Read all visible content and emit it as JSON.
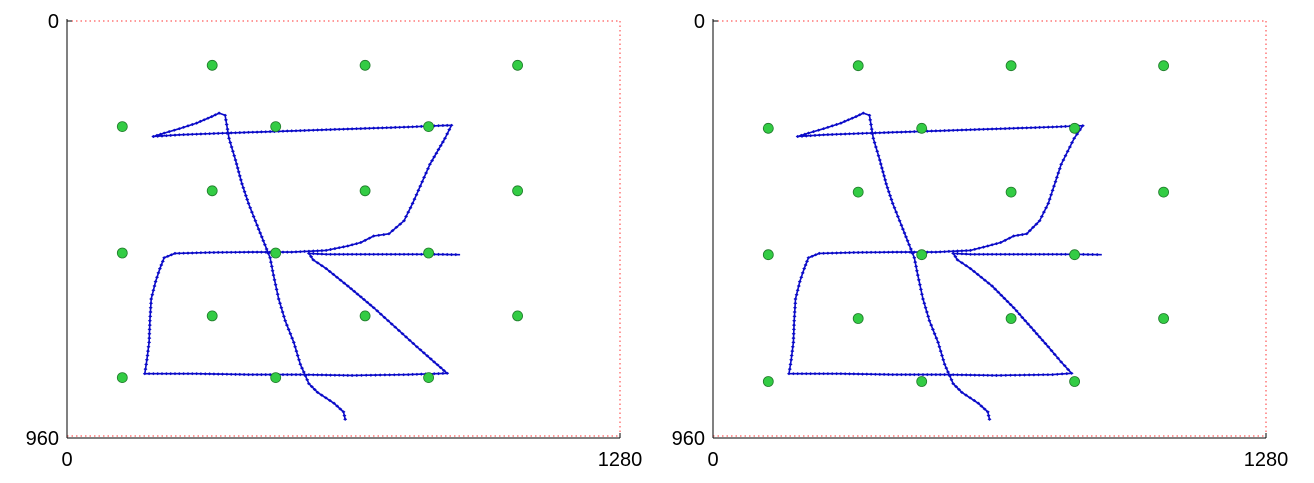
{
  "chart_data": [
    {
      "type": "scatter",
      "x_ticks": [
        "0",
        "1280"
      ],
      "y_ticks": [
        "0",
        "960"
      ],
      "xlim": [
        0,
        1280
      ],
      "ylim": [
        960,
        0
      ],
      "y_reversed": true,
      "grid": false,
      "colors": {
        "targets": "#33cc44",
        "gaze": "#0b0bc8",
        "boundary": "#ff3333"
      },
      "series": [
        {
          "points": [
            [
              128,
              243
            ],
            [
              336,
              102
            ],
            [
              690,
              102
            ],
            [
              1043,
              102
            ],
            [
              483,
              243
            ],
            [
              837,
              243
            ],
            [
              336,
              391
            ],
            [
              690,
              391
            ],
            [
              1043,
              391
            ],
            [
              128,
              534
            ],
            [
              483,
              534
            ],
            [
              837,
              534
            ],
            [
              336,
              679
            ],
            [
              690,
              679
            ],
            [
              1043,
              679
            ],
            [
              128,
              821
            ],
            [
              483,
              821
            ],
            [
              837,
              821
            ]
          ]
        },
        {
          "points": [
            [
              644,
              917
            ],
            [
              640,
              900
            ],
            [
              618,
              880
            ],
            [
              580,
              855
            ],
            [
              560,
              835
            ],
            [
              540,
              790
            ],
            [
              525,
              740
            ],
            [
              505,
              690
            ],
            [
              490,
              640
            ],
            [
              478,
              585
            ],
            [
              470,
              545
            ],
            [
              458,
              515
            ],
            [
              440,
              470
            ],
            [
              420,
              420
            ],
            [
              405,
              375
            ],
            [
              390,
              320
            ],
            [
              375,
              270
            ],
            [
              366,
              217
            ],
            [
              352,
              212
            ],
            [
              335,
              220
            ],
            [
              300,
              235
            ],
            [
              260,
              248
            ],
            [
              225,
              258
            ],
            [
              200,
              266
            ],
            [
              260,
              262
            ],
            [
              340,
              259
            ],
            [
              430,
              256
            ],
            [
              520,
              253
            ],
            [
              610,
              250
            ],
            [
              700,
              247
            ],
            [
              790,
              244
            ],
            [
              860,
              241
            ],
            [
              890,
              240
            ],
            [
              875,
              270
            ],
            [
              840,
              330
            ],
            [
              800,
              420
            ],
            [
              780,
              460
            ],
            [
              745,
              490
            ],
            [
              710,
              495
            ],
            [
              680,
              510
            ],
            [
              650,
              518
            ],
            [
              600,
              528
            ],
            [
              520,
              532
            ],
            [
              430,
              532
            ],
            [
              330,
              533
            ],
            [
              250,
              535
            ],
            [
              225,
              545
            ],
            [
              215,
              570
            ],
            [
              205,
              600
            ],
            [
              195,
              640
            ],
            [
              192,
              690
            ],
            [
              190,
              740
            ],
            [
              185,
              780
            ],
            [
              180,
              812
            ],
            [
              210,
              812
            ],
            [
              300,
              812
            ],
            [
              420,
              814
            ],
            [
              540,
              814
            ],
            [
              660,
              816
            ],
            [
              790,
              814
            ],
            [
              880,
              811
            ],
            [
              850,
              785
            ],
            [
              810,
              750
            ],
            [
              760,
              705
            ],
            [
              710,
              660
            ],
            [
              650,
              610
            ],
            [
              600,
              570
            ],
            [
              570,
              550
            ],
            [
              560,
              535
            ],
            [
              600,
              537
            ],
            [
              680,
              537
            ],
            [
              760,
              537
            ],
            [
              840,
              537
            ],
            [
              910,
              538
            ]
          ]
        }
      ]
    },
    {
      "type": "scatter",
      "x_ticks": [
        "0",
        "1280"
      ],
      "y_ticks": [
        "0",
        "960"
      ],
      "xlim": [
        0,
        1280
      ],
      "ylim": [
        960,
        0
      ],
      "y_reversed": true,
      "grid": false,
      "colors": {
        "targets": "#33cc44",
        "gaze": "#0b0bc8",
        "boundary": "#ff3333"
      },
      "series": [
        {
          "points": [
            [
              336,
              103
            ],
            [
              690,
              103
            ],
            [
              1043,
              103
            ],
            [
              128,
              247
            ],
            [
              483,
              247
            ],
            [
              837,
              247
            ],
            [
              336,
              394
            ],
            [
              690,
              394
            ],
            [
              1043,
              394
            ],
            [
              128,
              538
            ],
            [
              483,
              538
            ],
            [
              837,
              538
            ],
            [
              336,
              685
            ],
            [
              690,
              685
            ],
            [
              1043,
              685
            ],
            [
              128,
              830
            ],
            [
              483,
              830
            ],
            [
              837,
              830
            ]
          ]
        },
        {
          "points": [
            [
              640,
              917
            ],
            [
              636,
              900
            ],
            [
              614,
              880
            ],
            [
              576,
              855
            ],
            [
              556,
              835
            ],
            [
              536,
              790
            ],
            [
              521,
              740
            ],
            [
              501,
              690
            ],
            [
              486,
              640
            ],
            [
              474,
              585
            ],
            [
              466,
              545
            ],
            [
              454,
              515
            ],
            [
              436,
              470
            ],
            [
              416,
              420
            ],
            [
              401,
              375
            ],
            [
              386,
              320
            ],
            [
              371,
              270
            ],
            [
              362,
              217
            ],
            [
              348,
              212
            ],
            [
              331,
              220
            ],
            [
              296,
              235
            ],
            [
              256,
              248
            ],
            [
              221,
              258
            ],
            [
              196,
              266
            ],
            [
              256,
              262
            ],
            [
              336,
              259
            ],
            [
              426,
              256
            ],
            [
              516,
              253
            ],
            [
              606,
              250
            ],
            [
              696,
              247
            ],
            [
              786,
              244
            ],
            [
              856,
              241
            ],
            [
              836,
              270
            ],
            [
              806,
              330
            ],
            [
              776,
              420
            ],
            [
              756,
              460
            ],
            [
              726,
              490
            ],
            [
              696,
              495
            ],
            [
              666,
              510
            ],
            [
              636,
              518
            ],
            [
              596,
              528
            ],
            [
              516,
              532
            ],
            [
              426,
              532
            ],
            [
              326,
              533
            ],
            [
              246,
              535
            ],
            [
              221,
              545
            ],
            [
              211,
              570
            ],
            [
              201,
              600
            ],
            [
              191,
              640
            ],
            [
              188,
              690
            ],
            [
              186,
              740
            ],
            [
              181,
              780
            ],
            [
              176,
              812
            ],
            [
              206,
              812
            ],
            [
              296,
              812
            ],
            [
              416,
              814
            ],
            [
              536,
              814
            ],
            [
              656,
              816
            ],
            [
              786,
              814
            ],
            [
              830,
              811
            ],
            [
              806,
              785
            ],
            [
              776,
              750
            ],
            [
              736,
              705
            ],
            [
              696,
              660
            ],
            [
              646,
              610
            ],
            [
              596,
              570
            ],
            [
              566,
              550
            ],
            [
              556,
              535
            ],
            [
              596,
              537
            ],
            [
              676,
              537
            ],
            [
              756,
              537
            ],
            [
              836,
              537
            ],
            [
              900,
              538
            ]
          ]
        }
      ]
    }
  ]
}
